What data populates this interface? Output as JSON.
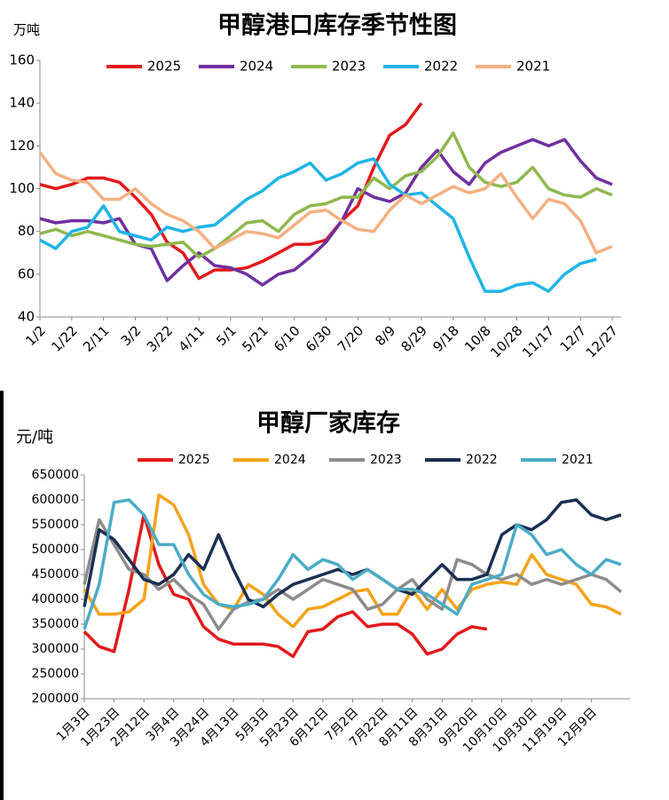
{
  "chart_data": [
    {
      "type": "line",
      "title": "甲醇港口库存季节性图",
      "y_label": "万吨",
      "categories": [
        "1/2",
        null,
        "1/22",
        null,
        "2/11",
        null,
        "3/2",
        null,
        "3/22",
        null,
        "4/11",
        null,
        "5/1",
        null,
        "5/21",
        null,
        "6/10",
        null,
        "6/30",
        null,
        "7/20",
        null,
        "8/9",
        null,
        "8/29",
        null,
        "9/18",
        null,
        "10/8",
        null,
        "10/28",
        null,
        "11/17",
        null,
        "12/7",
        null,
        "12/27"
      ],
      "ylim": [
        40,
        160
      ],
      "yticks": [
        40,
        60,
        80,
        100,
        120,
        140,
        160
      ],
      "legend": "top",
      "series": [
        {
          "name": "2025",
          "color": "#e3191b",
          "values": [
            102,
            100,
            102,
            105,
            105,
            103,
            96,
            88,
            75,
            70,
            58,
            62,
            62,
            63,
            66,
            70,
            74,
            74,
            76,
            85,
            92,
            110,
            125,
            130,
            140,
            null,
            null,
            null,
            null,
            null,
            null,
            null,
            null,
            null,
            null,
            null,
            null
          ]
        },
        {
          "name": "2024",
          "color": "#7030a0",
          "values": [
            86,
            84,
            85,
            85,
            84,
            86,
            74,
            72,
            57,
            64,
            70,
            64,
            63,
            60,
            55,
            60,
            62,
            68,
            75,
            85,
            100,
            96,
            94,
            98,
            110,
            118,
            108,
            102,
            112,
            117,
            120,
            123,
            120,
            123,
            113,
            105,
            102
          ]
        },
        {
          "name": "2023",
          "color": "#8fb84e",
          "values": [
            79,
            81,
            78,
            80,
            78,
            76,
            74,
            73,
            74,
            75,
            68,
            72,
            78,
            84,
            85,
            80,
            88,
            92,
            93,
            96,
            96,
            105,
            100,
            106,
            108,
            115,
            126,
            110,
            103,
            101,
            103,
            110,
            100,
            97,
            96,
            100,
            97
          ]
        },
        {
          "name": "2022",
          "color": "#20b4e6",
          "values": [
            76,
            72,
            80,
            82,
            92,
            80,
            78,
            76,
            82,
            80,
            82,
            83,
            89,
            95,
            99,
            105,
            108,
            112,
            104,
            107,
            112,
            114,
            102,
            97,
            98,
            92,
            86,
            68,
            52,
            52,
            55,
            56,
            52,
            60,
            65,
            67,
            null
          ]
        },
        {
          "name": "2021",
          "color": "#f4b183",
          "values": [
            117,
            107,
            104,
            103,
            95,
            95,
            100,
            93,
            88,
            85,
            80,
            72,
            76,
            80,
            79,
            77,
            83,
            89,
            90,
            85,
            81,
            80,
            90,
            97,
            93,
            97,
            101,
            98,
            100,
            107,
            96,
            86,
            95,
            93,
            85,
            70,
            73
          ]
        }
      ]
    },
    {
      "type": "line",
      "title": "甲醇厂家库存",
      "y_label": "元/吨",
      "categories": [
        "1月3日",
        null,
        "1月23日",
        null,
        "2月12日",
        null,
        "3月4日",
        null,
        "3月24日",
        null,
        "4月13日",
        null,
        "5月3日",
        null,
        "5月23日",
        null,
        "6月12日",
        null,
        "7月2日",
        null,
        "7月22日",
        null,
        "8月11日",
        null,
        "8月31日",
        null,
        "9月20日",
        null,
        "10月10日",
        null,
        "10月30日",
        null,
        "11月19日",
        null,
        "12月9日",
        null,
        null
      ],
      "ylim": [
        200000,
        650000
      ],
      "yticks": [
        200000,
        250000,
        300000,
        350000,
        400000,
        450000,
        500000,
        550000,
        600000,
        650000
      ],
      "legend": "top",
      "series": [
        {
          "name": "2025",
          "color": "#e3191b",
          "values": [
            335000,
            305000,
            295000,
            420000,
            570000,
            470000,
            410000,
            400000,
            345000,
            320000,
            310000,
            310000,
            310000,
            305000,
            285000,
            335000,
            340000,
            365000,
            375000,
            345000,
            350000,
            350000,
            330000,
            290000,
            300000,
            330000,
            345000,
            340000,
            null,
            null,
            null,
            null,
            null,
            null,
            null,
            null,
            null
          ]
        },
        {
          "name": "2024",
          "color": "#f5a31a",
          "values": [
            420000,
            370000,
            370000,
            375000,
            400000,
            610000,
            590000,
            530000,
            430000,
            390000,
            380000,
            430000,
            410000,
            370000,
            345000,
            380000,
            385000,
            400000,
            415000,
            420000,
            370000,
            370000,
            420000,
            380000,
            420000,
            380000,
            420000,
            430000,
            435000,
            430000,
            490000,
            450000,
            440000,
            430000,
            390000,
            385000,
            370000
          ]
        },
        {
          "name": "2023",
          "color": "#8c8c8c",
          "values": [
            430000,
            560000,
            510000,
            460000,
            450000,
            420000,
            440000,
            410000,
            390000,
            340000,
            380000,
            395000,
            400000,
            420000,
            400000,
            420000,
            440000,
            430000,
            420000,
            380000,
            390000,
            420000,
            440000,
            400000,
            380000,
            480000,
            470000,
            450000,
            440000,
            450000,
            430000,
            440000,
            430000,
            440000,
            450000,
            440000,
            415000
          ]
        },
        {
          "name": "2022",
          "color": "#1a2f52",
          "values": [
            385000,
            540000,
            520000,
            480000,
            440000,
            430000,
            450000,
            490000,
            460000,
            530000,
            460000,
            400000,
            385000,
            410000,
            430000,
            440000,
            450000,
            460000,
            450000,
            460000,
            440000,
            420000,
            410000,
            440000,
            470000,
            440000,
            440000,
            450000,
            530000,
            550000,
            540000,
            560000,
            595000,
            600000,
            570000,
            560000,
            570000
          ]
        },
        {
          "name": "2021",
          "color": "#4bacc6",
          "values": [
            340000,
            430000,
            595000,
            600000,
            570000,
            510000,
            510000,
            450000,
            410000,
            390000,
            385000,
            390000,
            400000,
            440000,
            490000,
            460000,
            480000,
            470000,
            440000,
            460000,
            440000,
            420000,
            420000,
            410000,
            390000,
            370000,
            430000,
            440000,
            450000,
            550000,
            530000,
            490000,
            500000,
            470000,
            450000,
            480000,
            470000
          ]
        }
      ]
    }
  ]
}
